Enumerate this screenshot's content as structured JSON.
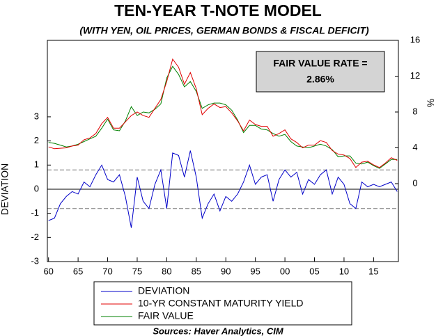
{
  "chart_data": {
    "type": "line",
    "title": "TEN-YEAR T-NOTE MODEL",
    "subtitle": "(WITH YEN, OIL PRICES, GERMAN BONDS & FISCAL DEFICIT)",
    "ylabel": "DEVIATION",
    "y2label": "%",
    "annotation": {
      "line1": "FAIR VALUE RATE =",
      "line2": "2.86%"
    },
    "source": "Sources:  Haver Analytics, CIM",
    "x": [
      1960,
      1961,
      1962,
      1963,
      1964,
      1965,
      1966,
      1967,
      1968,
      1969,
      1970,
      1971,
      1972,
      1973,
      1974,
      1975,
      1976,
      1977,
      1978,
      1979,
      1980,
      1981,
      1982,
      1983,
      1984,
      1985,
      1986,
      1987,
      1988,
      1989,
      1990,
      1991,
      1992,
      1993,
      1994,
      1995,
      1996,
      1997,
      1998,
      1999,
      2000,
      2001,
      2002,
      2003,
      2004,
      2005,
      2006,
      2007,
      2008,
      2009,
      2010,
      2011,
      2012,
      2013,
      2014,
      2015,
      2016,
      2017,
      2018,
      2019
    ],
    "xlim": [
      1959.8,
      2019.2
    ],
    "xticks": [
      {
        "value": 1960,
        "label": "60"
      },
      {
        "value": 1965,
        "label": "65"
      },
      {
        "value": 1970,
        "label": "70"
      },
      {
        "value": 1975,
        "label": "75"
      },
      {
        "value": 1980,
        "label": "80"
      },
      {
        "value": 1985,
        "label": "85"
      },
      {
        "value": 1990,
        "label": "90"
      },
      {
        "value": 1995,
        "label": "95"
      },
      {
        "value": 2000,
        "label": "00"
      },
      {
        "value": 2005,
        "label": "05"
      },
      {
        "value": 2010,
        "label": "10"
      },
      {
        "value": 2015,
        "label": "15"
      }
    ],
    "ylim": [
      -3,
      6.17
    ],
    "yticks": [
      -3,
      -2,
      -1,
      0,
      1,
      2,
      3
    ],
    "y2lim": [
      -8.7,
      16
    ],
    "y2ticks": [
      0,
      4,
      8,
      12,
      16
    ],
    "hlines": [
      {
        "value": 0.8,
        "dash": true
      },
      {
        "value": 0,
        "dash": false
      },
      {
        "value": -0.8,
        "dash": true
      }
    ],
    "series": [
      {
        "name": "DEVIATION",
        "color": "#0000c8",
        "axis": "y",
        "values": [
          -1.3,
          -1.2,
          -0.6,
          -0.3,
          -0.1,
          -0.2,
          0.3,
          0.1,
          0.6,
          1.0,
          0.4,
          0.3,
          0.6,
          -0.3,
          -1.6,
          0.5,
          -0.5,
          -0.8,
          0.2,
          0.8,
          -0.8,
          1.5,
          1.4,
          0.5,
          1.6,
          0.5,
          -1.2,
          -0.6,
          -0.2,
          -0.9,
          -0.3,
          -0.5,
          -0.2,
          0.3,
          1.0,
          0.2,
          0.5,
          0.6,
          -0.5,
          0.4,
          0.8,
          0.5,
          0.7,
          -0.2,
          0.4,
          0.2,
          0.6,
          0.8,
          -0.2,
          0.5,
          0.2,
          -0.6,
          -0.8,
          0.3,
          0.1,
          0.2,
          0.1,
          0.2,
          0.3,
          -0.1
        ]
      },
      {
        "name": "10-YR CONSTANT MATURITY YIELD",
        "color": "#e00000",
        "axis": "y2",
        "values": [
          4.1,
          3.9,
          3.95,
          4.0,
          4.2,
          4.3,
          4.9,
          5.1,
          5.6,
          6.7,
          7.4,
          6.2,
          6.2,
          6.9,
          7.6,
          8.0,
          7.6,
          7.4,
          8.4,
          9.4,
          11.4,
          13.9,
          13.0,
          11.1,
          12.4,
          10.6,
          7.7,
          8.4,
          8.9,
          8.5,
          8.6,
          7.9,
          7.0,
          5.9,
          7.1,
          6.6,
          6.4,
          6.4,
          5.3,
          5.6,
          6.0,
          5.0,
          4.6,
          4.0,
          4.3,
          4.3,
          4.8,
          4.6,
          3.7,
          3.3,
          3.2,
          2.8,
          1.8,
          2.4,
          2.5,
          2.1,
          1.8,
          2.3,
          2.9,
          2.6
        ]
      },
      {
        "name": "FAIR VALUE",
        "color": "#008000",
        "axis": "y2",
        "values": [
          4.6,
          4.5,
          4.3,
          4.1,
          4.2,
          4.4,
          4.7,
          5.0,
          5.3,
          6.2,
          7.2,
          6.0,
          5.9,
          7.0,
          8.6,
          7.6,
          8.0,
          7.9,
          8.3,
          8.9,
          11.8,
          13.1,
          12.2,
          10.8,
          11.4,
          10.3,
          8.4,
          8.8,
          9.0,
          9.0,
          8.8,
          8.2,
          7.1,
          5.7,
          6.5,
          6.5,
          6.1,
          6.0,
          5.6,
          5.3,
          5.5,
          4.7,
          4.2,
          4.1,
          4.0,
          4.2,
          4.4,
          4.2,
          3.8,
          3.0,
          3.1,
          3.1,
          2.3,
          2.2,
          2.4,
          2.0,
          1.7,
          2.2,
          2.7,
          2.7
        ]
      }
    ]
  }
}
